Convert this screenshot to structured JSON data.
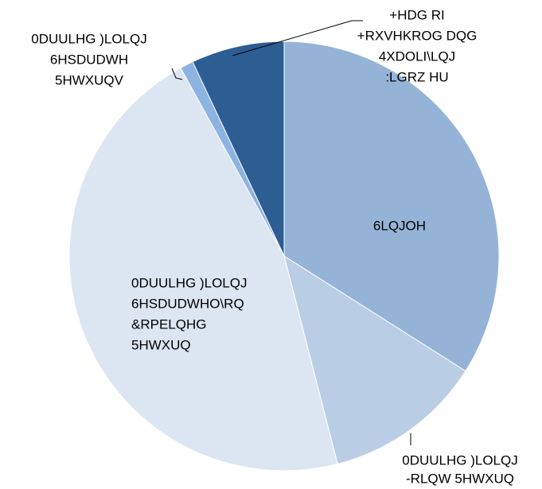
{
  "chart_data": {
    "type": "pie",
    "categories": [
      [
        "6LQJOH"
      ],
      [
        "0DUULHG )LOLQJ",
        "-RLQW 5HWXUQ"
      ],
      [
        "0DUULHG )LOLQJ",
        "6HSDUDWHO\\RQ",
        "&RPELQHG",
        "5HWXUQ"
      ],
      [
        "0DUULHG )LOLQJ",
        "6HSDUDWH",
        "5HWXUQV"
      ],
      [
        "+HDG RI",
        "+RXVHKROG DQG",
        "4XDOLI\\LQJ",
        ":LGRZ HU"
      ]
    ],
    "values": [
      34,
      12,
      46,
      1,
      7
    ],
    "colors": [
      "#95b3d7",
      "#b9cde5",
      "#dce6f2",
      "#8db3e2",
      "#2c5d93"
    ]
  }
}
